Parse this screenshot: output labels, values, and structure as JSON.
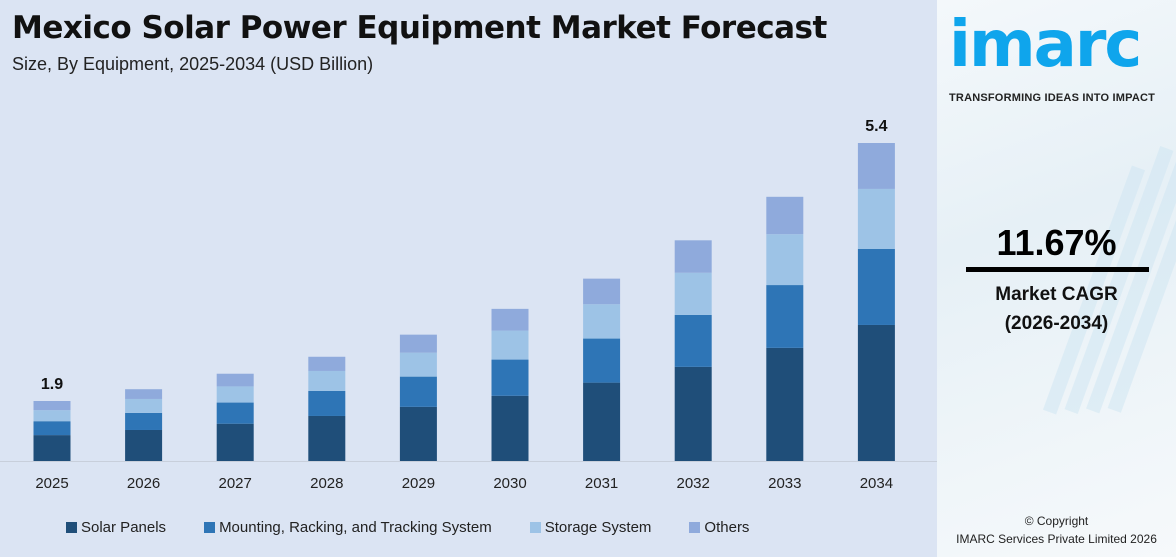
{
  "header": {
    "title": "Mexico Solar Power Equipment Market Forecast",
    "subtitle": "Size, By Equipment, 2025-2034 (USD Billion)"
  },
  "chart_data": {
    "type": "bar",
    "stacked": true,
    "title": "Mexico Solar Power Equipment Market Forecast",
    "subtitle": "Size, By Equipment, 2025-2034 (USD Billion)",
    "categories": [
      "2025",
      "2026",
      "2027",
      "2028",
      "2029",
      "2030",
      "2031",
      "2032",
      "2033",
      "2034"
    ],
    "series": [
      {
        "name": "Solar Panels",
        "color": "#1f4e79",
        "values": [
          0.82,
          0.89,
          0.97,
          1.08,
          1.2,
          1.35,
          1.53,
          1.74,
          2.0,
          2.31
        ]
      },
      {
        "name": "Mounting, Racking, and Tracking System",
        "color": "#2e75b6",
        "values": [
          0.44,
          0.49,
          0.55,
          0.6,
          0.67,
          0.75,
          0.86,
          0.96,
          1.11,
          1.29
        ]
      },
      {
        "name": "Storage System",
        "color": "#9dc3e6",
        "values": [
          0.35,
          0.4,
          0.42,
          0.48,
          0.53,
          0.6,
          0.67,
          0.78,
          0.9,
          1.02
        ]
      },
      {
        "name": "Others",
        "color": "#8faadc",
        "values": [
          0.29,
          0.28,
          0.33,
          0.34,
          0.4,
          0.45,
          0.5,
          0.6,
          0.66,
          0.78
        ]
      }
    ],
    "totals": [
      1.9,
      2.06,
      2.27,
      2.5,
      2.8,
      3.15,
      3.56,
      4.08,
      4.67,
      5.4
    ],
    "data_labels": {
      "2025": "1.9",
      "2034": "5.4"
    },
    "grid": false,
    "legend_position": "bottom"
  },
  "legend": [
    "Solar Panels",
    "Mounting, Racking, and Tracking System",
    "Storage System",
    "Others"
  ],
  "sidebar": {
    "logo": "imarc",
    "tagline": "TRANSFORMING IDEAS INTO IMPACT",
    "cagr_value": "11.67%",
    "cagr_label": "Market CAGR",
    "cagr_period": "(2026-2034)",
    "copyright": "© Copyright",
    "company": "IMARC Services Private Limited 2026",
    "brand_color": "#0fa5ec"
  }
}
